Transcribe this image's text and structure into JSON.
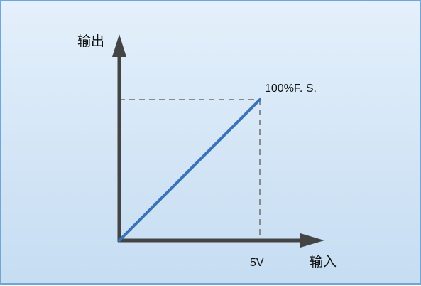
{
  "chart_data": {
    "type": "line",
    "title": "",
    "xlabel": "输入",
    "ylabel": "输出",
    "grid": false,
    "x": [
      0,
      5
    ],
    "series": [
      {
        "values": [
          0,
          100
        ]
      }
    ],
    "annotations": {
      "x_end_label": "5V",
      "y_end_label": "100%F. S."
    },
    "colors": {
      "line": "#3a74b8",
      "axis": "#444444",
      "guide": "#8a8a8a",
      "frame_border": "#6fa6d6",
      "background": "#d6e7f7"
    }
  }
}
